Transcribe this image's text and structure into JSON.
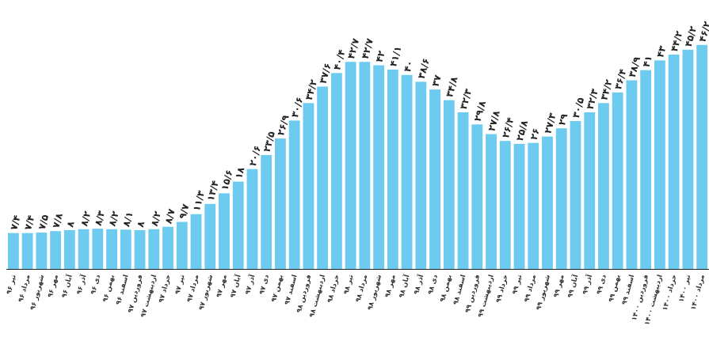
{
  "chart_data": {
    "type": "bar",
    "title": "",
    "xlabel": "",
    "ylabel": "",
    "ylim": [
      0,
      46
    ],
    "grid": false,
    "legend": "none",
    "color": "#6ccbee",
    "categories": [
      "تیر ۹۶",
      "مرداد ۹۶",
      "شهریور ۹۶",
      "مهر ۹۶",
      "آبان ۹۶",
      "آذر ۹۶",
      "دی ۹۶",
      "بهمن ۹۶",
      "اسفند ۹۶",
      "فروردین ۹۷",
      "اردیبهشت ۹۷",
      "خرداد ۹۷",
      "تیر ۹۷",
      "مرداد ۹۷",
      "شهریور ۹۷",
      "مهر ۹۷",
      "آبان ۹۷",
      "آذر ۹۷",
      "دی ۹۷",
      "بهمن ۹۷",
      "اسفند ۹۷",
      "فروردین ۹۸",
      "اردیبهشت ۹۸",
      "خرداد ۹۸",
      "تیر ۹۸",
      "مرداد ۹۸",
      "شهریور ۹۸",
      "مهر ۹۸",
      "آبان ۹۸",
      "آذر ۹۸",
      "دی ۹۸",
      "بهمن ۹۸",
      "اسفند ۹۸",
      "فروردین ۹۹",
      "اردیبهشت ۹۹",
      "خرداد ۹۹",
      "تیر ۹۹",
      "مرداد ۹۹",
      "شهریور ۹۹",
      "مهر ۹۹",
      "آبان ۹۹",
      "آذر ۹۹",
      "دی ۹۹",
      "بهمن ۹۹",
      "اسفند ۹۹",
      "فروردین ۱۴۰۰",
      "اردیبهشت ۱۴۰۰",
      "خرداد ۱۴۰۰",
      "تیر ۱۴۰۰",
      "مرداد ۱۴۰۰"
    ],
    "values": [
      7.4,
      7.4,
      7.5,
      7.8,
      8,
      8.2,
      8.3,
      8.2,
      8.1,
      8,
      8.2,
      8.7,
      9.7,
      11.3,
      13.4,
      15.6,
      18,
      20.6,
      23.5,
      26.9,
      30.6,
      34.2,
      37.6,
      40.4,
      42.7,
      42.7,
      42,
      41.1,
      40,
      38.6,
      37,
      34.8,
      32.3,
      29.8,
      27.8,
      26.4,
      25.8,
      26,
      27.3,
      29,
      30.5,
      32.3,
      34.2,
      36.4,
      38.9,
      41,
      43,
      44.2,
      45.2,
      46.2
    ],
    "data_labels": [
      "۷/۴",
      "۷/۴",
      "۷/۵",
      "۷/۸",
      "۸",
      "۸/۲",
      "۸/۳",
      "۸/۲",
      "۸/۱",
      "۸",
      "۸/۲",
      "۸/۷",
      "۹/۷",
      "۱۱/۳",
      "۱۳/۴",
      "۱۵/۶",
      "۱۸",
      "۲۰/۶",
      "۲۳/۵",
      "۲۶/۹",
      "۳۰/۶",
      "۳۴/۲",
      "۳۷/۶",
      "۴۰/۴",
      "۴۲/۷",
      "۴۲/۷",
      "۴۲",
      "۴۱/۱",
      "۴۰",
      "۳۸/۶",
      "۳۷",
      "۳۴/۸",
      "۳۲/۳",
      "۲۹/۸",
      "۲۷/۸",
      "۲۶/۴",
      "۲۵/۸",
      "۲۶",
      "۲۷/۳",
      "۲۹",
      "۳۰/۵",
      "۳۲/۳",
      "۳۴/۲",
      "۳۶/۴",
      "۳۸/۹",
      "۴۱",
      "۴۳",
      "۴۴/۲",
      "۴۵/۲",
      "۴۶/۲"
    ]
  }
}
